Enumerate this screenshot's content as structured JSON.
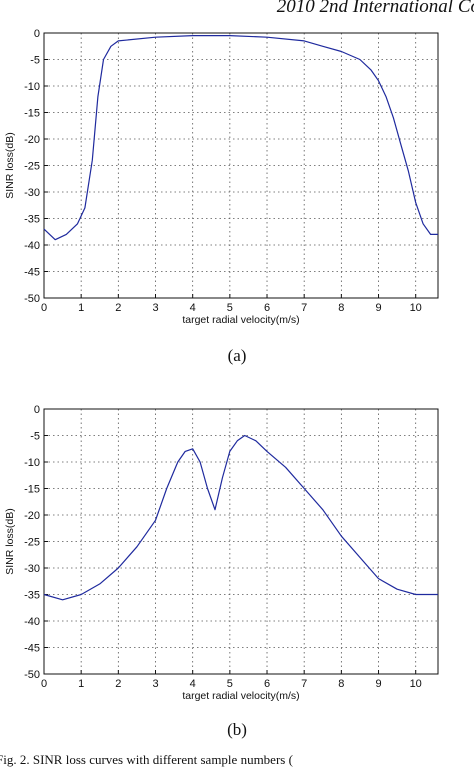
{
  "header_text": "2010 2nd International Co",
  "footer_text": "Fig. 2. SINR loss curves with different sample numbers (",
  "charts": [
    {
      "caption": "(a)",
      "xlabel": "target radial velocity(m/s)",
      "ylabel": "SINR loss(dB)",
      "xticks": [
        "0",
        "1",
        "2",
        "3",
        "4",
        "5",
        "6",
        "7",
        "8",
        "9",
        "10"
      ],
      "yticks": [
        "0",
        "-5",
        "-10",
        "-15",
        "-20",
        "-25",
        "-30",
        "-35",
        "-40",
        "-45",
        "-50"
      ]
    },
    {
      "caption": "(b)",
      "xlabel": "target radial velocity(m/s)",
      "ylabel": "SINR loss(dB)",
      "xticks": [
        "0",
        "1",
        "2",
        "3",
        "4",
        "5",
        "6",
        "7",
        "8",
        "9",
        "10"
      ],
      "yticks": [
        "0",
        "-5",
        "-10",
        "-15",
        "-20",
        "-25",
        "-30",
        "-35",
        "-40",
        "-45",
        "-50"
      ]
    }
  ],
  "chart_data": [
    {
      "type": "line",
      "xlabel": "target radial velocity(m/s)",
      "ylabel": "SINR loss(dB)",
      "xlim": [
        0,
        10.6
      ],
      "ylim": [
        -50,
        0
      ],
      "grid": true,
      "line_color": "#1f2a9e",
      "series": [
        {
          "x": [
            0,
            0.3,
            0.6,
            0.9,
            1.1,
            1.3,
            1.45,
            1.6,
            1.8,
            2.0,
            3.0,
            4.0,
            5.0,
            6.0,
            7.0,
            7.5,
            8.0,
            8.5,
            8.8,
            9.0,
            9.2,
            9.4,
            9.6,
            9.8,
            10.0,
            10.2,
            10.4,
            10.6
          ],
          "y": [
            -37,
            -39,
            -38,
            -36,
            -33,
            -24,
            -12,
            -5,
            -2.5,
            -1.5,
            -0.8,
            -0.5,
            -0.5,
            -0.8,
            -1.5,
            -2.5,
            -3.5,
            -5,
            -7,
            -9,
            -12,
            -16,
            -21,
            -26,
            -32,
            -36,
            -38,
            -38
          ]
        }
      ]
    },
    {
      "type": "line",
      "xlabel": "target radial velocity(m/s)",
      "ylabel": "SINR loss(dB)",
      "xlim": [
        0,
        10.6
      ],
      "ylim": [
        -50,
        0
      ],
      "grid": true,
      "line_color": "#1f2a9e",
      "series": [
        {
          "x": [
            0,
            0.5,
            1.0,
            1.5,
            2.0,
            2.5,
            3.0,
            3.3,
            3.6,
            3.8,
            4.0,
            4.2,
            4.4,
            4.6,
            4.8,
            5.0,
            5.2,
            5.4,
            5.7,
            6.0,
            6.5,
            7.0,
            7.5,
            8.0,
            8.5,
            9.0,
            9.5,
            10.0,
            10.6
          ],
          "y": [
            -35,
            -36,
            -35,
            -33,
            -30,
            -26,
            -21,
            -15,
            -10,
            -8,
            -7.5,
            -10,
            -15,
            -19,
            -13,
            -8,
            -6,
            -5,
            -6,
            -8,
            -11,
            -15,
            -19,
            -24,
            -28,
            -32,
            -34,
            -35,
            -35
          ]
        }
      ]
    }
  ]
}
